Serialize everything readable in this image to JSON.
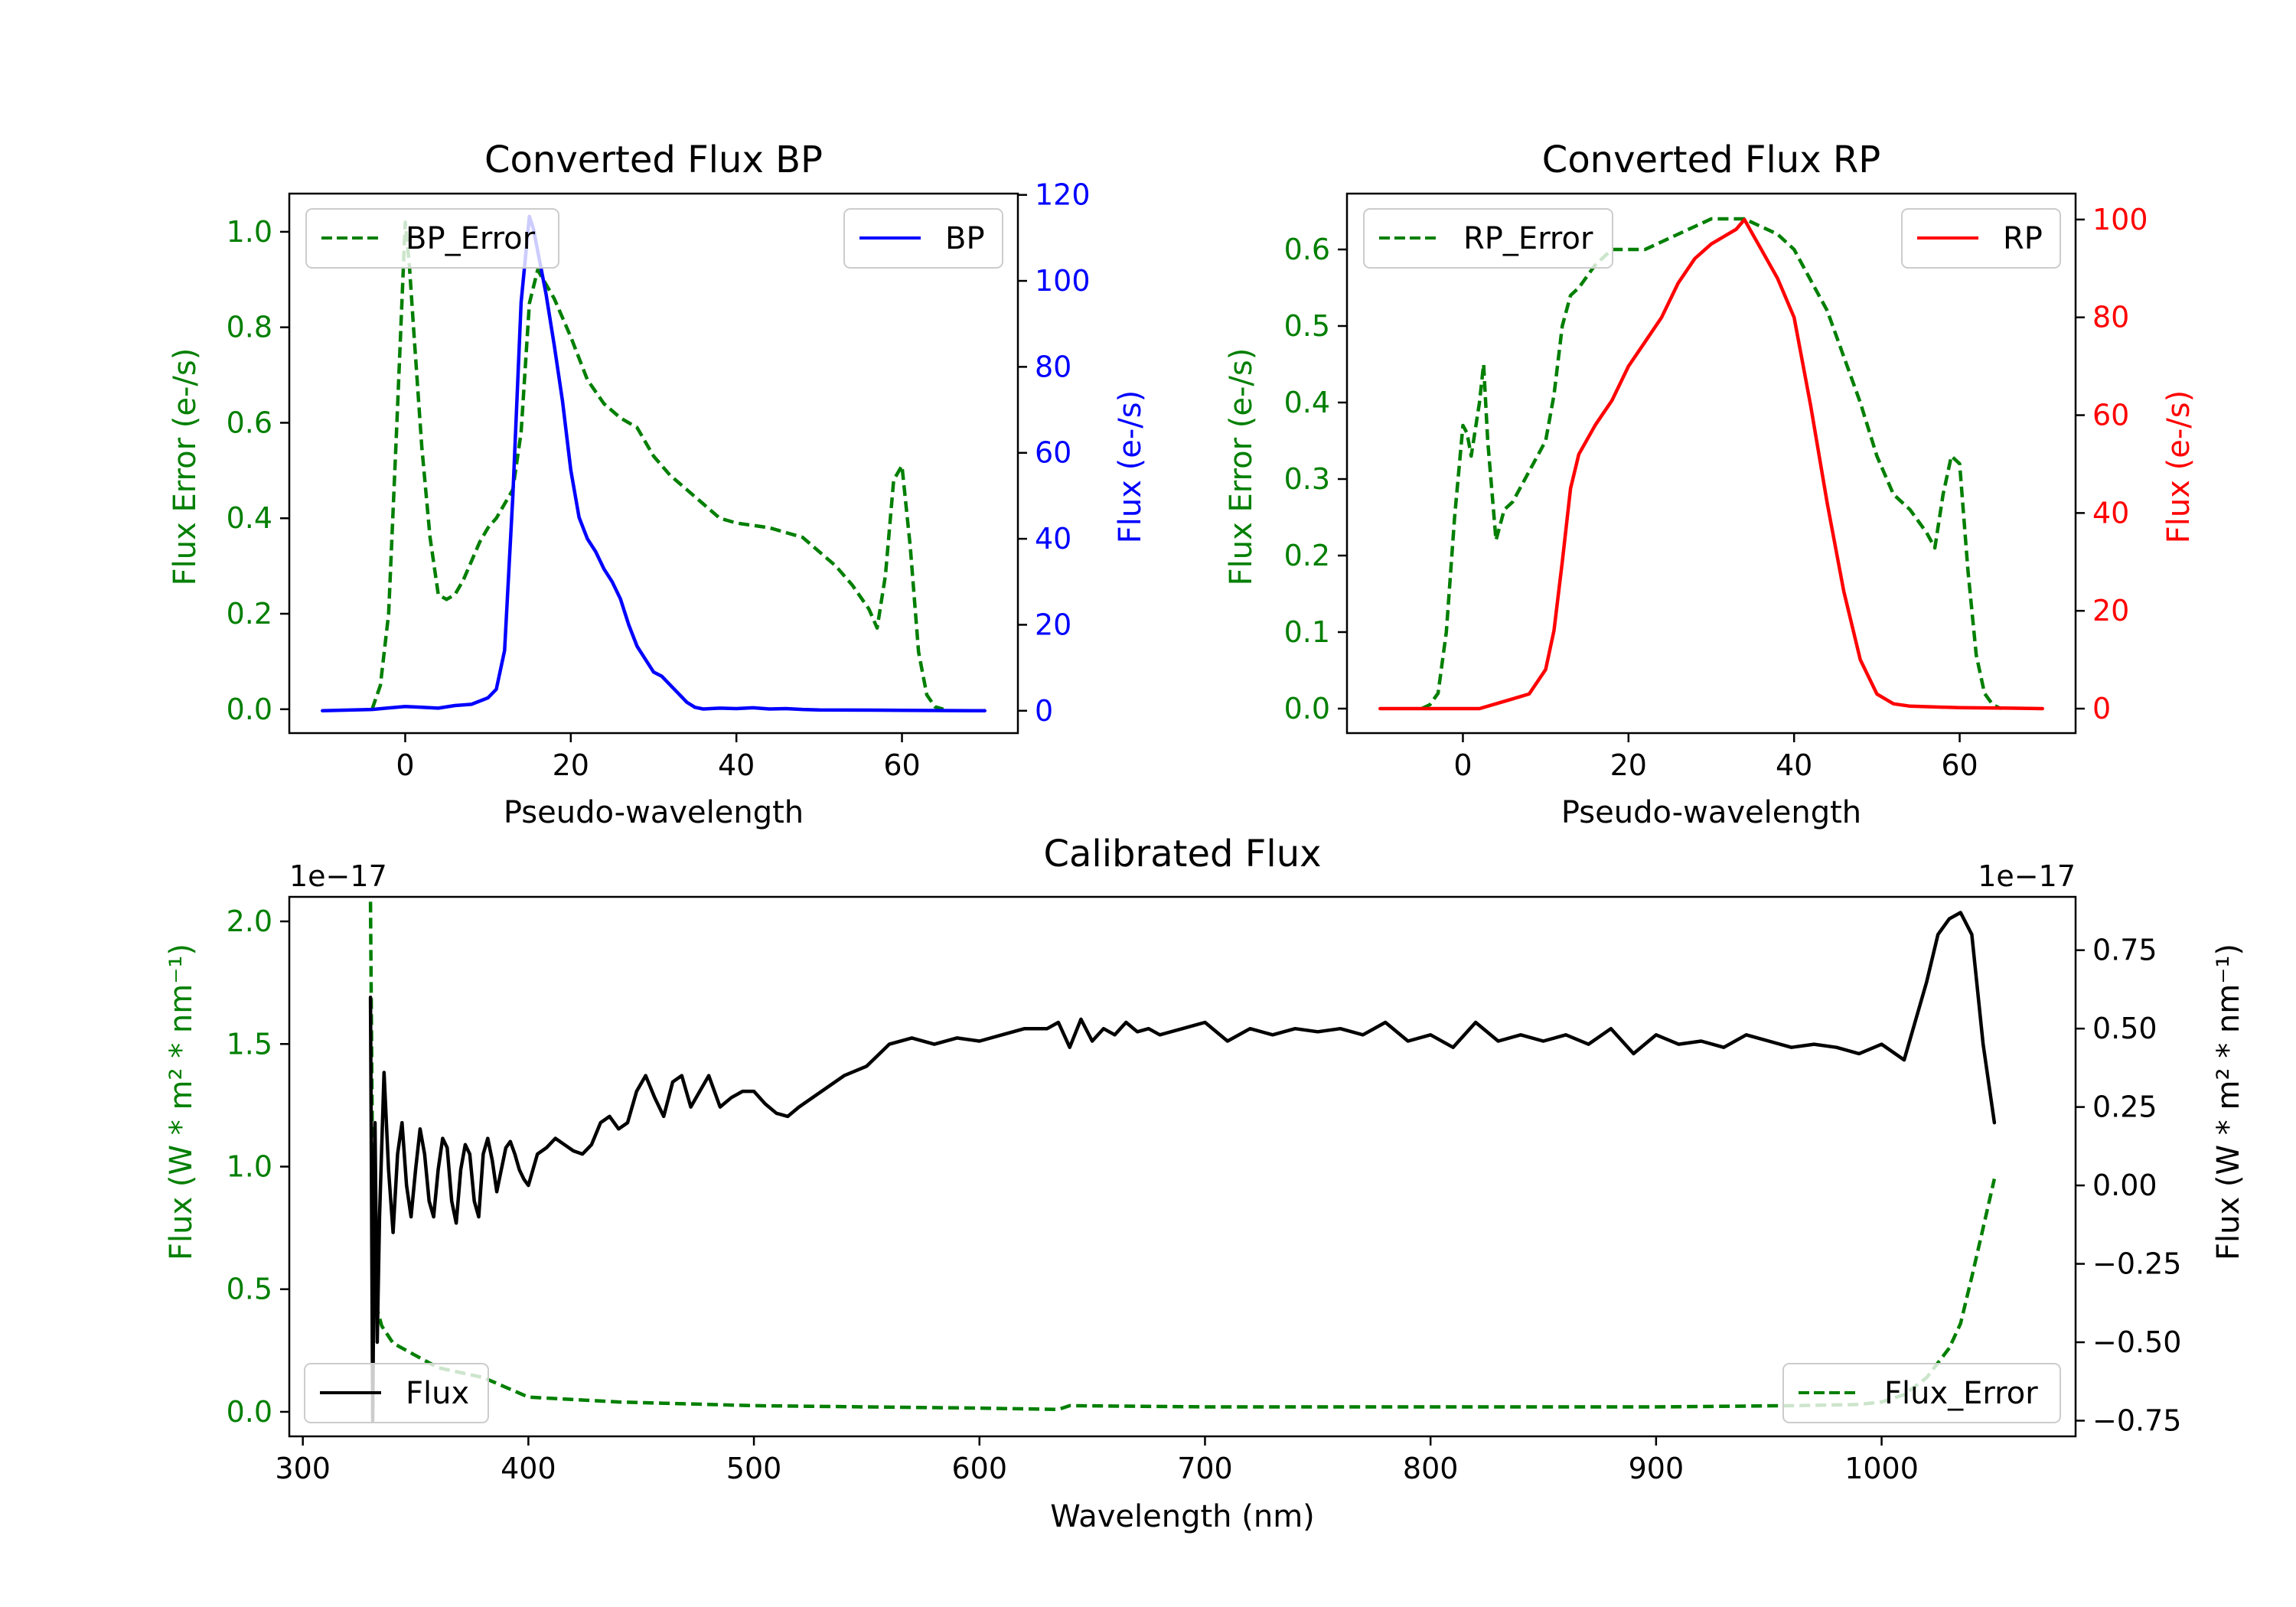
{
  "colors": {
    "green": "#007f00",
    "blue": "#0000ff",
    "red": "#ff0000",
    "black": "#000000"
  },
  "chart_data": [
    {
      "id": "bp",
      "type": "line",
      "title": "Converted Flux BP",
      "xlabel": "Pseudo-wavelength",
      "ylabel_left": "Flux Error (e-/s)",
      "ylabel_right": "Flux (e-/s)",
      "xlim": [
        -14,
        74
      ],
      "ylim_left": [
        -0.05,
        1.08
      ],
      "ylim_right": [
        -5.2,
        120.3
      ],
      "xticks": [
        0,
        20,
        40,
        60
      ],
      "xtick_labels": [
        "0",
        "20",
        "40",
        "60"
      ],
      "yticks_left": [
        0,
        0.2,
        0.4,
        0.6,
        0.8,
        1.0
      ],
      "ytick_labels_left": [
        "0.0",
        "0.2",
        "0.4",
        "0.6",
        "0.8",
        "1.0"
      ],
      "yticks_right": [
        0,
        20,
        40,
        60,
        80,
        100,
        120
      ],
      "ytick_labels_right": [
        "0",
        "20",
        "40",
        "60",
        "80",
        "100",
        "120"
      ],
      "left_axis_color": "#007f00",
      "right_axis_color": "#0000ff",
      "legend": [
        {
          "label": "BP_Error",
          "style": "dashed",
          "color": "#007f00",
          "position": "upper-left"
        },
        {
          "label": "BP",
          "style": "solid",
          "color": "#0000ff",
          "position": "upper-right"
        }
      ],
      "series": [
        {
          "name": "BP_Error",
          "axis": "left",
          "style": "dashed",
          "color": "#007f00",
          "x": [
            -4,
            -3,
            -2,
            -1,
            0,
            0.5,
            1,
            2,
            3,
            4,
            5,
            6,
            7,
            8,
            9,
            10,
            11,
            12,
            13,
            14,
            15,
            16,
            17,
            18,
            19,
            20,
            22,
            24,
            26,
            28,
            30,
            32,
            34,
            36,
            38,
            40,
            44,
            46,
            48,
            50,
            52,
            54,
            56,
            57,
            58,
            59,
            60,
            61,
            62,
            63,
            64,
            65
          ],
          "y": [
            0,
            0.05,
            0.2,
            0.6,
            1.02,
            0.93,
            0.8,
            0.55,
            0.36,
            0.24,
            0.23,
            0.24,
            0.27,
            0.31,
            0.35,
            0.38,
            0.4,
            0.43,
            0.46,
            0.58,
            0.85,
            0.92,
            0.89,
            0.86,
            0.82,
            0.78,
            0.69,
            0.64,
            0.61,
            0.59,
            0.53,
            0.49,
            0.46,
            0.43,
            0.4,
            0.39,
            0.38,
            0.37,
            0.36,
            0.33,
            0.3,
            0.26,
            0.21,
            0.17,
            0.28,
            0.48,
            0.51,
            0.34,
            0.12,
            0.03,
            0.005,
            0
          ]
        },
        {
          "name": "BP",
          "axis": "right",
          "style": "solid",
          "color": "#0000ff",
          "x": [
            -10,
            -4,
            0,
            2,
            4,
            6,
            8,
            10,
            11,
            12,
            13,
            14,
            15,
            15.5,
            16,
            17,
            18,
            19,
            20,
            21,
            22,
            23,
            24,
            25,
            26,
            27,
            28,
            29,
            30,
            31,
            32,
            33,
            34,
            35,
            36,
            38,
            40,
            42,
            44,
            46,
            48,
            50,
            60,
            70
          ],
          "y": [
            0,
            0.3,
            1,
            0.8,
            0.6,
            1.2,
            1.5,
            3,
            5,
            14,
            50,
            95,
            115,
            112,
            107,
            97,
            85,
            72,
            56,
            45,
            40,
            37,
            33,
            30,
            26,
            20,
            15,
            12,
            9,
            8,
            6,
            4,
            2,
            0.8,
            0.4,
            0.6,
            0.5,
            0.7,
            0.4,
            0.5,
            0.3,
            0.2,
            0.1,
            0
          ]
        }
      ]
    },
    {
      "id": "rp",
      "type": "line",
      "title": "Converted Flux RP",
      "xlabel": "Pseudo-wavelength",
      "ylabel_left": "Flux Error (e-/s)",
      "ylabel_right": "Flux (e-/s)",
      "xlim": [
        -14,
        74
      ],
      "ylim_left": [
        -0.032,
        0.673
      ],
      "ylim_right": [
        -5,
        105.3
      ],
      "xticks": [
        0,
        20,
        40,
        60
      ],
      "xtick_labels": [
        "0",
        "20",
        "40",
        "60"
      ],
      "yticks_left": [
        0,
        0.1,
        0.2,
        0.3,
        0.4,
        0.5,
        0.6
      ],
      "ytick_labels_left": [
        "0.0",
        "0.1",
        "0.2",
        "0.3",
        "0.4",
        "0.5",
        "0.6"
      ],
      "yticks_right": [
        0,
        20,
        40,
        60,
        80,
        100
      ],
      "ytick_labels_right": [
        "0",
        "20",
        "40",
        "60",
        "80",
        "100"
      ],
      "left_axis_color": "#007f00",
      "right_axis_color": "#ff0000",
      "legend": [
        {
          "label": "RP_Error",
          "style": "dashed",
          "color": "#007f00",
          "position": "upper-left"
        },
        {
          "label": "RP",
          "style": "solid",
          "color": "#ff0000",
          "position": "upper-right"
        }
      ],
      "series": [
        {
          "name": "RP_Error",
          "axis": "left",
          "style": "dashed",
          "color": "#007f00",
          "x": [
            -5,
            -4,
            -3,
            -2,
            -1,
            0,
            0.5,
            1,
            2,
            2.5,
            3,
            4,
            5,
            6,
            8,
            10,
            11,
            12,
            13,
            14,
            16,
            18,
            20,
            22,
            24,
            26,
            28,
            30,
            32,
            34,
            36,
            38,
            40,
            42,
            44,
            46,
            48,
            50,
            52,
            54,
            56,
            57,
            58,
            59,
            60,
            61,
            62,
            63,
            64,
            65
          ],
          "y": [
            0,
            0.005,
            0.02,
            0.1,
            0.25,
            0.37,
            0.36,
            0.33,
            0.4,
            0.45,
            0.35,
            0.22,
            0.26,
            0.27,
            0.31,
            0.35,
            0.41,
            0.5,
            0.54,
            0.55,
            0.58,
            0.6,
            0.6,
            0.6,
            0.61,
            0.62,
            0.63,
            0.64,
            0.64,
            0.64,
            0.63,
            0.62,
            0.6,
            0.56,
            0.52,
            0.46,
            0.4,
            0.33,
            0.28,
            0.26,
            0.23,
            0.21,
            0.28,
            0.33,
            0.32,
            0.18,
            0.07,
            0.02,
            0.005,
            0
          ]
        },
        {
          "name": "RP",
          "axis": "right",
          "style": "solid",
          "color": "#ff0000",
          "x": [
            -10,
            -4,
            0,
            2,
            4,
            6,
            8,
            10,
            11,
            12,
            13,
            14,
            16,
            18,
            20,
            22,
            24,
            26,
            28,
            30,
            32,
            33,
            34,
            35,
            36,
            38,
            40,
            42,
            44,
            46,
            48,
            50,
            52,
            54,
            60,
            66,
            70
          ],
          "y": [
            0,
            0,
            0,
            0,
            1,
            2,
            3,
            8,
            16,
            30,
            45,
            52,
            58,
            63,
            70,
            75,
            80,
            87,
            92,
            95,
            97,
            98,
            100,
            97,
            94,
            88,
            80,
            62,
            42,
            24,
            10,
            3,
            1,
            0.5,
            0.2,
            0.1,
            0
          ]
        }
      ]
    },
    {
      "id": "calibrated",
      "type": "line",
      "title": "Calibrated Flux",
      "xlabel": "Wavelength (nm)",
      "ylabel_left": "Flux (W * m² * nm⁻¹)",
      "ylabel_right": "Flux (W * m² * nm⁻¹)",
      "offset_left": "1e−17",
      "offset_right": "1e−17",
      "xlim": [
        294,
        1086
      ],
      "ylim_left": [
        -0.1,
        2.1
      ],
      "ylim_right": [
        -0.8,
        0.92
      ],
      "xticks": [
        300,
        400,
        500,
        600,
        700,
        800,
        900,
        1000
      ],
      "xtick_labels": [
        "300",
        "400",
        "500",
        "600",
        "700",
        "800",
        "900",
        "1000"
      ],
      "yticks_left": [
        0,
        0.5,
        1.0,
        1.5,
        2.0
      ],
      "ytick_labels_left": [
        "0.0",
        "0.5",
        "1.0",
        "1.5",
        "2.0"
      ],
      "yticks_right": [
        -0.75,
        -0.5,
        -0.25,
        0,
        0.25,
        0.5,
        0.75
      ],
      "ytick_labels_right": [
        "−0.75",
        "−0.50",
        "−0.25",
        "0.00",
        "0.25",
        "0.50",
        "0.75"
      ],
      "left_axis_color": "#007f00",
      "right_axis_color": "#000000",
      "legend": [
        {
          "label": "Flux",
          "style": "solid",
          "color": "#000000",
          "position": "lower-left"
        },
        {
          "label": "Flux_Error",
          "style": "dashed",
          "color": "#007f00",
          "position": "lower-right"
        }
      ],
      "series": [
        {
          "name": "Flux_Error",
          "axis": "left",
          "style": "dashed",
          "color": "#007f00",
          "x": [
            330,
            331,
            332,
            335,
            340,
            350,
            360,
            370,
            380,
            390,
            400,
            420,
            440,
            460,
            500,
            550,
            600,
            635,
            640,
            700,
            800,
            900,
            960,
            990,
            1000,
            1010,
            1020,
            1025,
            1030,
            1035,
            1040,
            1045,
            1050
          ],
          "y": [
            2.08,
            0.9,
            0.45,
            0.35,
            0.28,
            0.23,
            0.18,
            0.16,
            0.14,
            0.1,
            0.06,
            0.05,
            0.04,
            0.035,
            0.025,
            0.02,
            0.015,
            0.01,
            0.025,
            0.02,
            0.02,
            0.02,
            0.025,
            0.03,
            0.04,
            0.07,
            0.14,
            0.2,
            0.26,
            0.36,
            0.55,
            0.75,
            0.95
          ]
        },
        {
          "name": "Flux",
          "axis": "right",
          "style": "solid",
          "color": "#000000",
          "x": [
            330,
            331,
            332,
            333,
            334,
            336,
            338,
            340,
            342,
            344,
            346,
            348,
            350,
            352,
            354,
            356,
            358,
            360,
            362,
            364,
            366,
            368,
            370,
            372,
            374,
            376,
            378,
            380,
            382,
            384,
            386,
            388,
            390,
            392,
            394,
            396,
            398,
            400,
            404,
            408,
            412,
            416,
            420,
            424,
            428,
            432,
            436,
            440,
            444,
            448,
            452,
            456,
            460,
            464,
            468,
            472,
            476,
            480,
            485,
            490,
            495,
            500,
            505,
            510,
            515,
            520,
            530,
            540,
            550,
            560,
            570,
            580,
            590,
            600,
            610,
            620,
            630,
            635,
            640,
            645,
            650,
            655,
            660,
            665,
            670,
            675,
            680,
            690,
            700,
            710,
            720,
            730,
            740,
            750,
            760,
            770,
            780,
            790,
            800,
            810,
            820,
            830,
            840,
            850,
            860,
            870,
            880,
            890,
            900,
            910,
            920,
            930,
            940,
            950,
            960,
            970,
            980,
            990,
            1000,
            1010,
            1020,
            1025,
            1030,
            1035,
            1040,
            1045,
            1050
          ],
          "y": [
            0.6,
            -0.75,
            0.2,
            -0.5,
            -0.1,
            0.36,
            0.05,
            -0.15,
            0.1,
            0.2,
            0.0,
            -0.1,
            0.05,
            0.18,
            0.1,
            -0.05,
            -0.1,
            0.05,
            0.15,
            0.12,
            -0.05,
            -0.12,
            0.05,
            0.13,
            0.1,
            -0.05,
            -0.1,
            0.1,
            0.15,
            0.08,
            -0.02,
            0.05,
            0.12,
            0.14,
            0.1,
            0.05,
            0.02,
            0.0,
            0.1,
            0.12,
            0.15,
            0.13,
            0.11,
            0.1,
            0.13,
            0.2,
            0.22,
            0.18,
            0.2,
            0.3,
            0.35,
            0.28,
            0.22,
            0.33,
            0.35,
            0.25,
            0.3,
            0.35,
            0.25,
            0.28,
            0.3,
            0.3,
            0.26,
            0.23,
            0.22,
            0.25,
            0.3,
            0.35,
            0.38,
            0.45,
            0.47,
            0.45,
            0.47,
            0.46,
            0.48,
            0.5,
            0.5,
            0.52,
            0.44,
            0.53,
            0.46,
            0.5,
            0.48,
            0.52,
            0.49,
            0.5,
            0.48,
            0.5,
            0.52,
            0.46,
            0.5,
            0.48,
            0.5,
            0.49,
            0.5,
            0.48,
            0.52,
            0.46,
            0.48,
            0.44,
            0.52,
            0.46,
            0.48,
            0.46,
            0.48,
            0.45,
            0.5,
            0.42,
            0.48,
            0.45,
            0.46,
            0.44,
            0.48,
            0.46,
            0.44,
            0.45,
            0.44,
            0.42,
            0.45,
            0.4,
            0.65,
            0.8,
            0.85,
            0.87,
            0.8,
            0.45,
            0.2
          ]
        }
      ]
    }
  ]
}
